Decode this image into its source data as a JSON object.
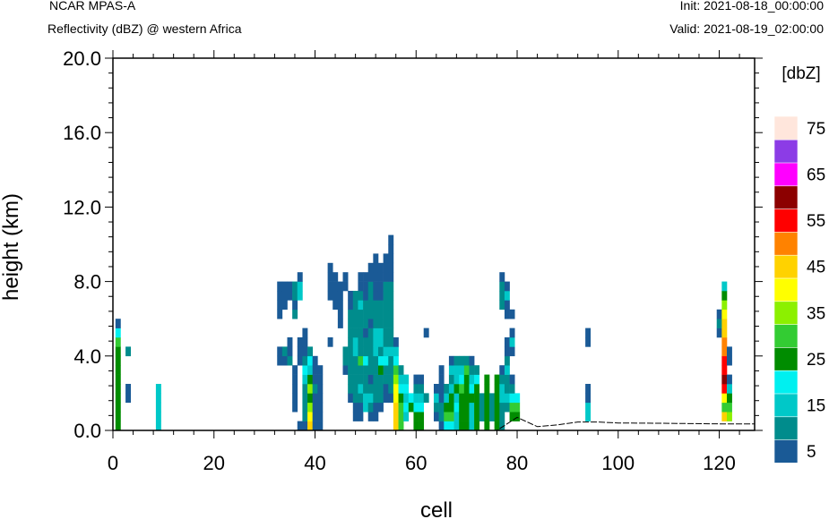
{
  "header": {
    "model": "NCAR MPAS-A",
    "field": "Reflectivity (dBZ) @ western Africa",
    "init": "Init: 2021-08-18_00:00:00",
    "valid": "Valid: 2021-08-19_02:00:00"
  },
  "chart_data": {
    "type": "heatmap",
    "title": "Reflectivity (dBZ) @ western Africa",
    "xlabel": "cell",
    "ylabel": "height (km)",
    "xlim": [
      0,
      127
    ],
    "ylim": [
      0,
      20
    ],
    "x_ticks": [
      0,
      20,
      40,
      60,
      80,
      100,
      120
    ],
    "y_ticks": [
      0,
      4,
      8,
      12,
      16,
      20
    ],
    "y_tick_labels": [
      "0.0",
      "4.0",
      "8.0",
      "12.0",
      "16.0",
      "20.0"
    ],
    "cell_height_km": 0.5,
    "colorbar": {
      "title": "[dbZ]",
      "levels": [
        5,
        10,
        15,
        20,
        25,
        30,
        35,
        40,
        45,
        50,
        55,
        60,
        65,
        70,
        75
      ],
      "labels": [
        "5",
        "15",
        "25",
        "35",
        "45",
        "55",
        "65",
        "75"
      ],
      "colors": [
        "#1a5a96",
        "#008c8c",
        "#00c8c8",
        "#00f0f0",
        "#008c00",
        "#33cc33",
        "#8cf000",
        "#ffff00",
        "#ffd200",
        "#ff8200",
        "#ff0000",
        "#8c0000",
        "#ff00ff",
        "#8c3ce6",
        "#ffe6dc"
      ]
    },
    "terrain": {
      "x": [
        0,
        76,
        80,
        84,
        88,
        92,
        96,
        100,
        110,
        120,
        127
      ],
      "z_km": [
        0.0,
        0.0,
        0.7,
        0.2,
        0.3,
        0.45,
        0.45,
        0.4,
        0.38,
        0.35,
        0.35
      ]
    },
    "columns": [
      {
        "x": 1,
        "base": 0.0,
        "dbz": [
          25,
          25,
          25,
          25,
          25,
          25,
          25,
          25,
          25,
          30,
          20,
          5
        ]
      },
      {
        "x": 3,
        "base": 1.5,
        "dbz": [
          5,
          5
        ]
      },
      {
        "x": 3,
        "base": 4.0,
        "dbz": [
          10
        ]
      },
      {
        "x": 9,
        "base": 0.0,
        "dbz": [
          15,
          15,
          15,
          15,
          15
        ]
      },
      {
        "x": 33,
        "base": 3.5,
        "dbz": [
          5,
          5
        ]
      },
      {
        "x": 33,
        "base": 6.0,
        "dbz": [
          5,
          5,
          5,
          5
        ]
      },
      {
        "x": 34,
        "base": 3.5,
        "dbz": [
          5,
          10
        ]
      },
      {
        "x": 34,
        "base": 6.5,
        "dbz": [
          5,
          5,
          5
        ]
      },
      {
        "x": 35,
        "base": 3.5,
        "dbz": [
          10,
          5,
          5
        ]
      },
      {
        "x": 35,
        "base": 7.0,
        "dbz": [
          5,
          5
        ]
      },
      {
        "x": 36,
        "base": 1.0,
        "dbz": [
          5,
          5,
          5,
          5,
          5
        ]
      },
      {
        "x": 36,
        "base": 6.0,
        "dbz": [
          10,
          5,
          10,
          10
        ]
      },
      {
        "x": 37,
        "base": 0.0,
        "dbz": [
          5
        ]
      },
      {
        "x": 37,
        "base": 3.5,
        "dbz": [
          5,
          5,
          5
        ]
      },
      {
        "x": 37,
        "base": 7.0,
        "dbz": [
          15,
          15,
          5
        ]
      },
      {
        "x": 38,
        "base": 0.0,
        "dbz": [
          5,
          10,
          10,
          10,
          10,
          15,
          20,
          10,
          5,
          5,
          5
        ]
      },
      {
        "x": 39,
        "base": 0.0,
        "dbz": [
          45,
          40,
          35,
          25,
          35,
          25,
          15,
          20,
          10
        ]
      },
      {
        "x": 40,
        "base": 0.0,
        "dbz": [
          5,
          5,
          5,
          5,
          10,
          5,
          5,
          5
        ]
      },
      {
        "x": 41,
        "base": 0.0,
        "dbz": [
          5,
          5,
          5,
          5,
          5,
          5,
          5
        ]
      },
      {
        "x": 43,
        "base": 4.5,
        "dbz": [
          5
        ]
      },
      {
        "x": 43,
        "base": 7.0,
        "dbz": [
          5,
          5,
          5,
          5
        ]
      },
      {
        "x": 44,
        "base": 6.5,
        "dbz": [
          5,
          5,
          5,
          5
        ]
      },
      {
        "x": 45,
        "base": 5.5,
        "dbz": [
          5,
          5,
          5,
          5,
          5
        ]
      },
      {
        "x": 46,
        "base": 3.0,
        "dbz": [
          5,
          10,
          10
        ]
      },
      {
        "x": 46,
        "base": 7.5,
        "dbz": [
          5,
          5
        ]
      },
      {
        "x": 47,
        "base": 1.5,
        "dbz": [
          5,
          10,
          10,
          10,
          10,
          10,
          10,
          10,
          10,
          10,
          5,
          5
        ]
      },
      {
        "x": 48,
        "base": 0.5,
        "dbz": [
          5,
          5,
          10,
          10,
          10,
          10,
          10,
          15,
          15,
          10,
          10,
          10,
          10,
          10
        ]
      },
      {
        "x": 49,
        "base": 0.5,
        "dbz": [
          5,
          5,
          10,
          15,
          10,
          10,
          30,
          10,
          10,
          10,
          10,
          10,
          15,
          10,
          5,
          5
        ]
      },
      {
        "x": 50,
        "base": 1.0,
        "dbz": [
          15,
          15,
          10,
          10,
          10,
          20,
          10,
          10,
          5,
          10,
          10,
          10,
          5,
          5,
          5
        ]
      },
      {
        "x": 51,
        "base": 0.5,
        "dbz": [
          5,
          10,
          15,
          10,
          5,
          10,
          10,
          10,
          10,
          10,
          5,
          10,
          10,
          10,
          10,
          5,
          5
        ]
      },
      {
        "x": 52,
        "base": 0.5,
        "dbz": [
          5,
          5,
          10,
          10,
          10,
          10,
          10,
          15,
          15,
          15,
          10,
          10,
          10,
          5,
          5,
          5,
          5,
          5
        ]
      },
      {
        "x": 53,
        "base": 1.0,
        "dbz": [
          5,
          10,
          10,
          10,
          25,
          20,
          10,
          15,
          15,
          10,
          10,
          10,
          5,
          5,
          5,
          5
        ]
      },
      {
        "x": 54,
        "base": 1.5,
        "dbz": [
          5,
          5,
          10,
          10,
          20,
          15,
          10,
          10,
          10,
          10,
          10,
          10,
          10,
          5,
          5,
          5
        ]
      },
      {
        "x": 55,
        "base": 1.5,
        "dbz": [
          5,
          10,
          10,
          10,
          10,
          15,
          10,
          10,
          10,
          10,
          10,
          10,
          10,
          5,
          5,
          5,
          5,
          5
        ]
      },
      {
        "x": 56,
        "base": 0.0,
        "dbz": [
          45,
          45,
          45,
          40,
          40,
          35,
          30,
          20,
          15,
          5
        ]
      },
      {
        "x": 57,
        "base": 0.0,
        "dbz": [
          30,
          30,
          30,
          25,
          20,
          15,
          10
        ]
      },
      {
        "x": 58,
        "base": 0.5,
        "dbz": [
          15,
          20,
          15,
          20,
          15
        ]
      },
      {
        "x": 59,
        "base": 1.0,
        "dbz": [
          25,
          20
        ]
      },
      {
        "x": 60,
        "base": 0.0,
        "dbz": [
          25,
          25,
          20,
          15,
          10,
          5
        ]
      },
      {
        "x": 61,
        "base": 0.0,
        "dbz": [
          25,
          25,
          20,
          15,
          10,
          5
        ]
      },
      {
        "x": 62,
        "base": 1.5,
        "dbz": [
          10
        ]
      },
      {
        "x": 62,
        "base": 5.0,
        "dbz": [
          5
        ]
      },
      {
        "x": 64,
        "base": 0.5,
        "dbz": [
          5,
          10,
          15,
          5
        ]
      },
      {
        "x": 65,
        "base": 0.0,
        "dbz": [
          5,
          10,
          10,
          5,
          5,
          5,
          5
        ]
      },
      {
        "x": 66,
        "base": 0.0,
        "dbz": [
          20,
          30,
          25,
          15,
          10
        ]
      },
      {
        "x": 67,
        "base": 0.0,
        "dbz": [
          20,
          30,
          25,
          25,
          15,
          10,
          15,
          5
        ]
      },
      {
        "x": 68,
        "base": 0.0,
        "dbz": [
          15,
          15,
          20,
          15,
          25,
          15,
          15,
          10
        ]
      },
      {
        "x": 69,
        "base": 0.0,
        "dbz": [
          25,
          25,
          25,
          25,
          30,
          20,
          15,
          10
        ]
      },
      {
        "x": 70,
        "base": 0.0,
        "dbz": [
          25,
          25,
          25,
          25,
          25,
          25,
          30,
          10
        ]
      },
      {
        "x": 71,
        "base": 0.0,
        "dbz": [
          15,
          15,
          15,
          25,
          20,
          15,
          10,
          5
        ]
      },
      {
        "x": 72,
        "base": 0.0,
        "dbz": [
          25,
          25,
          25,
          25,
          25,
          20,
          10
        ]
      },
      {
        "x": 73,
        "base": 0.5,
        "dbz": [
          10,
          10,
          10
        ]
      },
      {
        "x": 74,
        "base": 0.0,
        "dbz": [
          25,
          25,
          25,
          25,
          25,
          25
        ]
      },
      {
        "x": 75,
        "base": 0.5,
        "dbz": [
          10,
          10,
          10
        ]
      },
      {
        "x": 76,
        "base": 0.0,
        "dbz": [
          25,
          25,
          25,
          25,
          25,
          25
        ]
      },
      {
        "x": 77,
        "base": 0.0,
        "dbz": [
          10,
          10,
          10,
          15,
          15,
          10,
          5
        ]
      },
      {
        "x": 77,
        "base": 6.5,
        "dbz": [
          10,
          10,
          10,
          5
        ]
      },
      {
        "x": 78,
        "base": 1.0,
        "dbz": [
          10,
          15,
          10,
          10,
          15,
          10,
          5,
          5
        ]
      },
      {
        "x": 78,
        "base": 6.0,
        "dbz": [
          5,
          5,
          15,
          5
        ]
      },
      {
        "x": 79,
        "base": 0.5,
        "dbz": [
          25,
          30,
          20,
          10,
          5
        ]
      },
      {
        "x": 79,
        "base": 4.0,
        "dbz": [
          5,
          15,
          5
        ]
      },
      {
        "x": 79,
        "base": 6.0,
        "dbz": [
          5
        ]
      },
      {
        "x": 80,
        "base": 0.5,
        "dbz": [
          25,
          30,
          20
        ]
      },
      {
        "x": 94,
        "base": 0.5,
        "dbz": [
          15,
          15,
          5,
          5
        ]
      },
      {
        "x": 94,
        "base": 4.5,
        "dbz": [
          5,
          5
        ]
      },
      {
        "x": 120,
        "base": 5.0,
        "dbz": [
          5,
          10,
          5
        ]
      },
      {
        "x": 121,
        "base": 0.5,
        "dbz": [
          45,
          30,
          40,
          55,
          60,
          55,
          55,
          50,
          50,
          45,
          45,
          40,
          35,
          25,
          15
        ]
      },
      {
        "x": 122,
        "base": 0.5,
        "dbz": [
          35,
          30,
          25,
          15,
          5
        ]
      },
      {
        "x": 122,
        "base": 3.5,
        "dbz": [
          5,
          5
        ]
      }
    ]
  }
}
